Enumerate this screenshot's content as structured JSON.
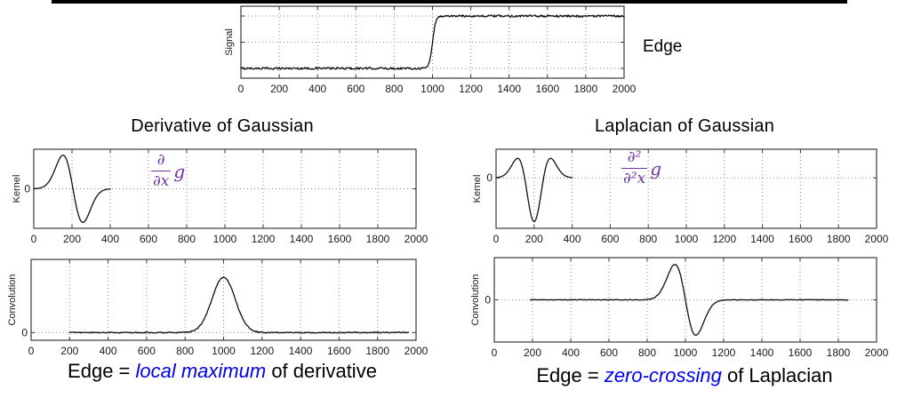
{
  "page": {
    "edge_label": "Edge",
    "titles": {
      "derivative": "Derivative of Gaussian",
      "laplacian": "Laplacian of Gaussian"
    },
    "formulas": {
      "dog": {
        "numerator": "∂",
        "denominator": "∂x",
        "operand": "g"
      },
      "log": {
        "numerator": "∂²",
        "denominator": "∂²x",
        "operand": "g"
      }
    },
    "captions": {
      "left": {
        "prefix": "Edge = ",
        "highlight": "local maximum",
        "suffix": " of derivative"
      },
      "right": {
        "prefix": "Edge = ",
        "highlight": "zero-crossing",
        "suffix": " of Laplacian"
      }
    },
    "colors": {
      "math_purple": "#7030A0",
      "caption_blue": "#0000EE",
      "curve_black": "#101010",
      "grid_gray": "#8A8A8A",
      "rule_black": "#000000"
    }
  },
  "chart_data": [
    {
      "id": "signal",
      "type": "line",
      "title": "",
      "ylabel": "Signal",
      "xlim": [
        0,
        2000
      ],
      "ylim": [
        -0.05,
        1.05
      ],
      "xticks": [
        0,
        200,
        400,
        600,
        800,
        1000,
        1200,
        1400,
        1600,
        1800,
        2000
      ],
      "yticks": [],
      "ygrid": [
        0.1,
        0.5,
        0.9
      ],
      "grid": "dotted",
      "legend": "none",
      "series": [
        {
          "name": "noisy step signal",
          "shape": "step",
          "low": 0.1,
          "high": 0.9,
          "step_center": 1000,
          "steepness": 0.12,
          "noise": 0.016,
          "x_start": 0,
          "x_end": 2000,
          "samples": 480
        }
      ]
    },
    {
      "id": "dog-kernel",
      "type": "line",
      "title": "Derivative of Gaussian",
      "ylabel": "Kernel",
      "xlim": [
        0,
        2000
      ],
      "ylim": [
        -1.0,
        1.0
      ],
      "xticks": [
        0,
        200,
        400,
        600,
        800,
        1000,
        1200,
        1400,
        1600,
        1800,
        2000
      ],
      "yticks": [
        0
      ],
      "ygrid": [
        0
      ],
      "grid": "dotted",
      "legend": "none",
      "series": [
        {
          "name": "derivative of Gaussian kernel",
          "shape": "gauss_deriv",
          "amp": 0.85,
          "center": 205,
          "sigma": 52,
          "noise": 0,
          "x_start": 0,
          "x_end": 400,
          "samples": 160
        }
      ]
    },
    {
      "id": "log-kernel",
      "type": "line",
      "title": "Laplacian of Gaussian",
      "ylabel": "Kernel",
      "xlim": [
        0,
        2000
      ],
      "ylim": [
        -1.5,
        0.85
      ],
      "xticks": [
        0,
        200,
        400,
        600,
        800,
        1000,
        1200,
        1400,
        1600,
        1800,
        2000
      ],
      "yticks": [
        0
      ],
      "ygrid": [
        0
      ],
      "grid": "dotted",
      "legend": "none",
      "series": [
        {
          "name": "Laplacian of Gaussian kernel",
          "shape": "laplacian",
          "amp": 1.3,
          "center": 200,
          "sigma": 50,
          "noise": 0,
          "x_start": 0,
          "x_end": 400,
          "samples": 160
        }
      ]
    },
    {
      "id": "dog-conv",
      "type": "line",
      "title": "",
      "ylabel": "Convolution",
      "xlim": [
        0,
        2000
      ],
      "ylim": [
        -0.1,
        0.95
      ],
      "xticks": [
        0,
        200,
        400,
        600,
        800,
        1000,
        1200,
        1400,
        1600,
        1800,
        2000
      ],
      "yticks": [
        0
      ],
      "ygrid": [
        0
      ],
      "grid": "dotted",
      "legend": "none",
      "series": [
        {
          "name": "signal convolved with derivative of Gaussian",
          "shape": "gauss",
          "amp": 0.72,
          "center": 1000,
          "sigma": 60,
          "noise": 0.007,
          "x_start": 200,
          "x_end": 1960,
          "samples": 420
        }
      ]
    },
    {
      "id": "log-conv",
      "type": "line",
      "title": "",
      "ylabel": "Convolution",
      "xlim": [
        0,
        2000
      ],
      "ylim": [
        -1.05,
        1.05
      ],
      "xticks": [
        0,
        200,
        400,
        600,
        800,
        1000,
        1200,
        1400,
        1600,
        1800,
        2000
      ],
      "yticks": [
        0
      ],
      "ygrid": [
        0
      ],
      "grid": "dotted",
      "legend": "none",
      "series": [
        {
          "name": "signal convolved with Laplacian of Gaussian",
          "shape": "gauss_deriv",
          "amp": 0.88,
          "center": 1000,
          "sigma": 55,
          "noise": 0.009,
          "x_start": 190,
          "x_end": 1850,
          "samples": 420
        }
      ]
    }
  ]
}
